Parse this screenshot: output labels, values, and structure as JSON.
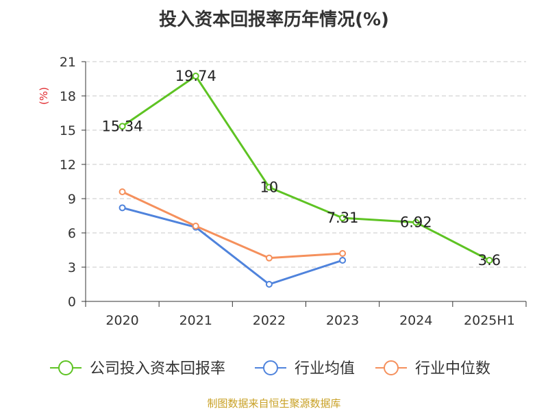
{
  "title": "投入资本回报率历年情况(%)",
  "source": "制图数据来自恒生聚源数据库",
  "chart_data": {
    "type": "line",
    "title": "投入资本回报率历年情况(%)",
    "ylabel": "(%)",
    "categories": [
      "2020",
      "2021",
      "2022",
      "2023",
      "2024",
      "2025H1"
    ],
    "ylim": [
      0,
      21
    ],
    "yticks": [
      0,
      3,
      6,
      9,
      12,
      15,
      18,
      21
    ],
    "grid": true,
    "legend_position": "bottom",
    "series": [
      {
        "name": "公司投入资本回报率",
        "color": "#5ec323",
        "values": [
          15.34,
          19.74,
          10,
          7.31,
          6.92,
          3.6
        ],
        "labels": [
          "15.34",
          "19.74",
          "10",
          "7.31",
          "6.92",
          "3.6"
        ]
      },
      {
        "name": "行业均值",
        "color": "#4f83dc",
        "values": [
          8.2,
          6.5,
          1.5,
          3.6,
          null,
          null
        ]
      },
      {
        "name": "行业中位数",
        "color": "#f5905c",
        "values": [
          9.6,
          6.6,
          3.8,
          4.2,
          null,
          null
        ]
      }
    ]
  }
}
